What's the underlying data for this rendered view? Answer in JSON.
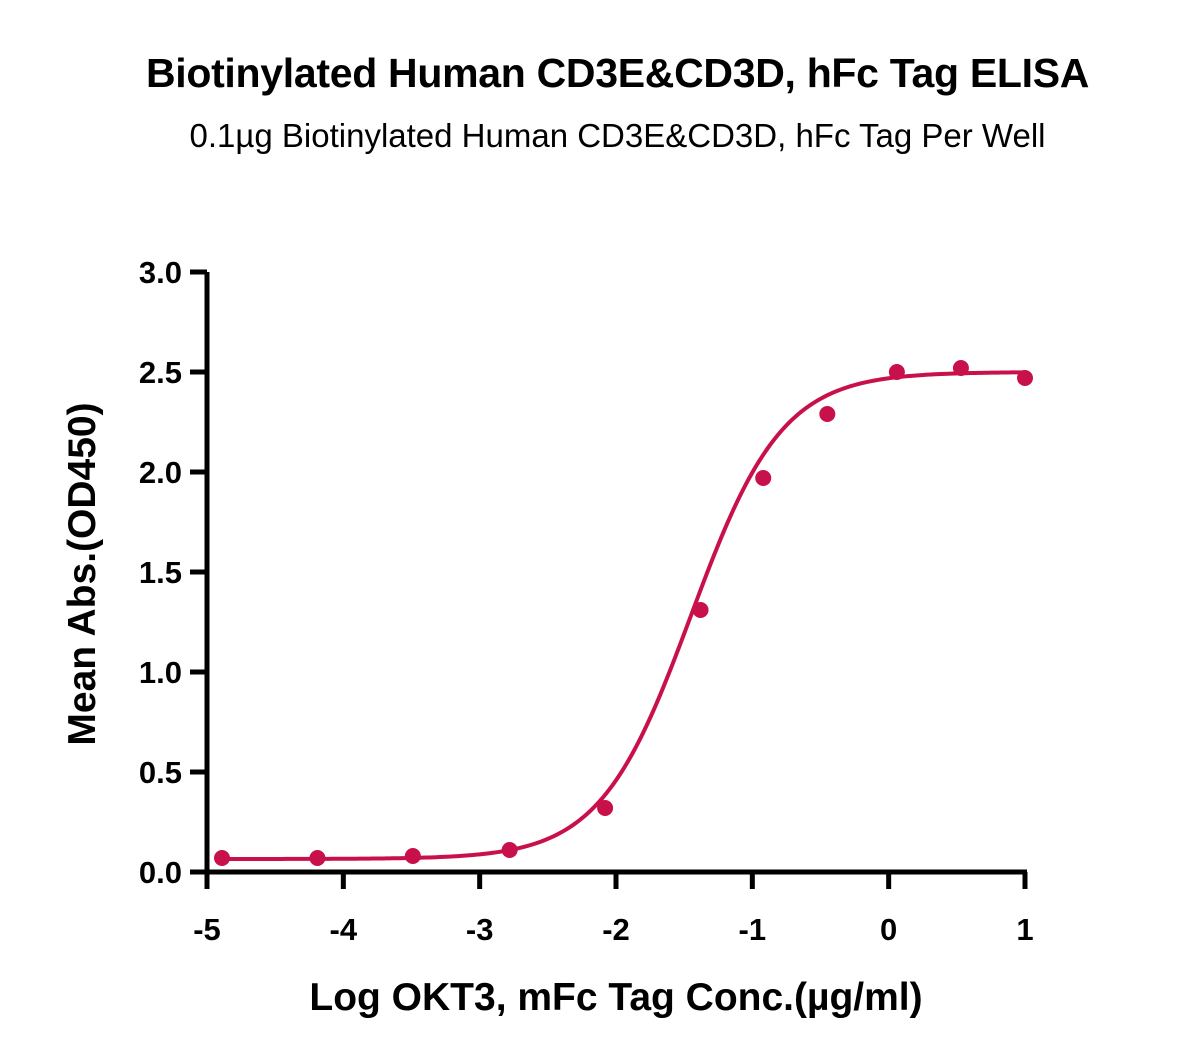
{
  "chart_data": {
    "type": "scatter",
    "title": "Biotinylated Human CD3E&CD3D, hFc Tag ELISA",
    "subtitle": "0.1µg Biotinylated Human CD3E&CD3D, hFc Tag Per Well",
    "xlabel": "Log OKT3, mFc Tag Conc.(µg/ml)",
    "ylabel": "Mean Abs.(OD450)",
    "xlim": [
      -5,
      1
    ],
    "ylim": [
      0,
      3
    ],
    "x_ticks": [
      -5,
      -4,
      -3,
      -2,
      -1,
      0,
      1
    ],
    "x_tick_labels": [
      "-5",
      "-4",
      "-3",
      "-2",
      "-1",
      "0",
      "1"
    ],
    "y_ticks": [
      0,
      0.5,
      1,
      1.5,
      2,
      2.5,
      3
    ],
    "y_tick_labels": [
      "0.0",
      "0.5",
      "1.0",
      "1.5",
      "2.0",
      "2.5",
      "3.0"
    ],
    "grid": false,
    "color": "#c8104a",
    "series": [
      {
        "x": [
          -4.89,
          -4.19,
          -3.49,
          -2.78,
          -2.08,
          -1.38,
          -0.92,
          -0.45,
          0.06,
          0.53,
          1.0
        ],
        "y": [
          0.07,
          0.07,
          0.08,
          0.11,
          0.32,
          1.31,
          1.97,
          2.29,
          2.5,
          2.52,
          2.47
        ]
      }
    ],
    "fit_curve": {
      "model": "4PL",
      "bottom": 0.065,
      "top": 2.5,
      "log_ec50": -1.45,
      "hill_slope": 1.3
    }
  }
}
